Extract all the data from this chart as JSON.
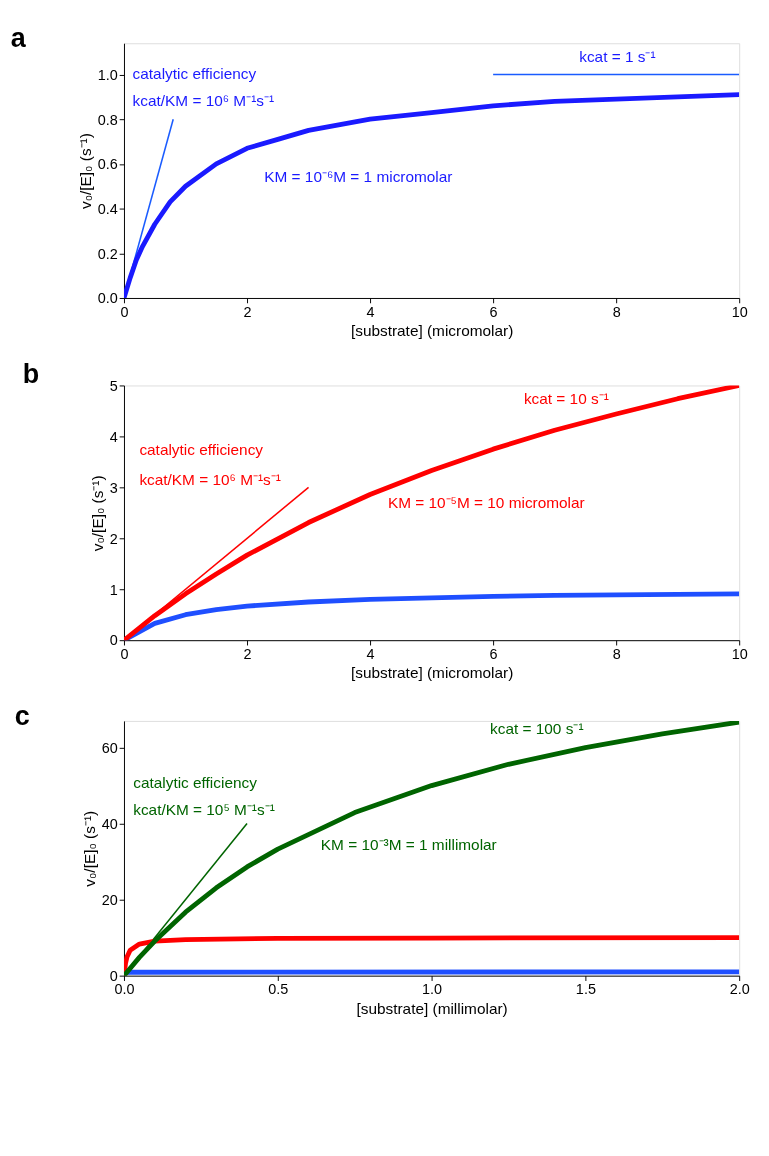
{
  "chart_data": [
    {
      "type": "line",
      "title": "a",
      "xlabel": "[substrate] (micromolar)",
      "ylabel": "v₀/[E]₀ (s⁻¹)",
      "x": [
        0,
        0.1,
        0.2,
        0.3,
        0.5,
        0.75,
        1,
        1.5,
        2,
        2.5,
        3,
        4,
        5,
        6,
        7,
        8,
        9,
        10
      ],
      "series": [
        {
          "color": "#1a1aff",
          "values": [
            0,
            0.09,
            0.17,
            0.23,
            0.33,
            0.43,
            0.5,
            0.6,
            0.67,
            0.71,
            0.75,
            0.8,
            0.83,
            0.86,
            0.88,
            0.89,
            0.9,
            0.91
          ]
        },
        {
          "color": "#1a5cff",
          "x": [
            0,
            0.8
          ],
          "values": [
            0,
            0.8
          ]
        },
        {
          "color": "#1a5cff",
          "x": [
            6,
            10
          ],
          "values": [
            1,
            1
          ]
        }
      ],
      "xlim": [
        0,
        10
      ],
      "xticks": [
        0,
        2,
        4,
        6,
        8,
        10
      ],
      "ylim": [
        0,
        1.14
      ],
      "yticks": [
        {
          "value": 0,
          "label": "0.0"
        },
        {
          "value": 0.2,
          "label": "0.2"
        },
        {
          "value": 0.4,
          "label": "0.4"
        },
        {
          "value": 0.6,
          "label": "0.6"
        },
        {
          "value": 0.8,
          "label": "0.8"
        },
        {
          "value": 1,
          "label": "1.0"
        }
      ],
      "annotations": [
        "catalytic efficiency",
        "kcat/KM = 10⁶ M⁻¹s⁻¹",
        "kcat = 1 s⁻¹",
        "KM = 10⁻⁶M = 1 micromolar"
      ],
      "grid": false
    },
    {
      "type": "line",
      "title": "b",
      "xlabel": "[substrate] (micromolar)",
      "ylabel": "v₀/[E]₀ (s⁻¹)",
      "x": [
        0,
        0.5,
        1,
        1.5,
        2,
        3,
        4,
        5,
        6,
        7,
        8,
        9,
        10
      ],
      "series": [
        {
          "color": "#ff0000",
          "values": [
            0,
            0.48,
            0.91,
            1.3,
            1.67,
            2.31,
            2.86,
            3.33,
            3.75,
            4.12,
            4.44,
            4.74,
            5
          ]
        },
        {
          "color": "#1f4fff",
          "values": [
            0,
            0.33,
            0.5,
            0.6,
            0.67,
            0.75,
            0.8,
            0.83,
            0.86,
            0.88,
            0.89,
            0.9,
            0.91
          ]
        },
        {
          "color": "#ff0000",
          "x": [
            0,
            3
          ],
          "values": [
            0,
            3
          ]
        }
      ],
      "xlim": [
        0,
        10
      ],
      "xticks": [
        0,
        2,
        4,
        6,
        8,
        10
      ],
      "ylim": [
        0,
        5
      ],
      "yticks": [
        0,
        1,
        2,
        3,
        4,
        5
      ],
      "annotations": [
        "catalytic efficiency",
        "kcat/KM = 10⁶ M⁻¹s⁻¹",
        "kcat = 10 s⁻¹",
        "KM = 10⁻⁵M = 10 micromolar"
      ],
      "grid": false
    },
    {
      "type": "line",
      "title": "c",
      "xlabel": "[substrate] (millimolar)",
      "ylabel": "v₀/[E]₀ (s⁻¹)",
      "series": [
        {
          "color": "#006400",
          "x": [
            0,
            0.05,
            0.1,
            0.2,
            0.3,
            0.4,
            0.5,
            0.75,
            1,
            1.25,
            1.5,
            1.75,
            2
          ],
          "values": [
            0,
            4.8,
            9.1,
            16.7,
            23.1,
            28.6,
            33.3,
            42.9,
            50,
            55.6,
            60,
            63.6,
            66.7
          ]
        },
        {
          "color": "#ff0000",
          "x": [
            0,
            0.005,
            0.01,
            0.02,
            0.05,
            0.1,
            0.2,
            0.5,
            1,
            2
          ],
          "values": [
            0,
            3.3,
            5,
            6.7,
            8.3,
            9.1,
            9.5,
            9.8,
            9.9,
            10
          ]
        },
        {
          "color": "#1f4fff",
          "x": [
            0,
            0.005,
            0.02,
            2
          ],
          "values": [
            0,
            0.8,
            0.9,
            1
          ]
        },
        {
          "color": "#006400",
          "x": [
            0,
            0.4
          ],
          "values": [
            0,
            40
          ]
        }
      ],
      "xlim": [
        0,
        2
      ],
      "xticks": [
        {
          "value": 0,
          "label": "0.0"
        },
        {
          "value": 0.5,
          "label": "0.5"
        },
        {
          "value": 1,
          "label": "1.0"
        },
        {
          "value": 1.5,
          "label": "1.5"
        },
        {
          "value": 2,
          "label": "2.0"
        }
      ],
      "ylim": [
        0,
        67
      ],
      "yticks": [
        0,
        20,
        40,
        60
      ],
      "annotations": [
        "catalytic efficiency",
        "kcat/KM = 10⁵ M⁻¹s⁻¹",
        "kcat = 100 s⁻¹",
        "KM = 10⁻³M = 1 millimolar"
      ],
      "grid": false
    }
  ]
}
